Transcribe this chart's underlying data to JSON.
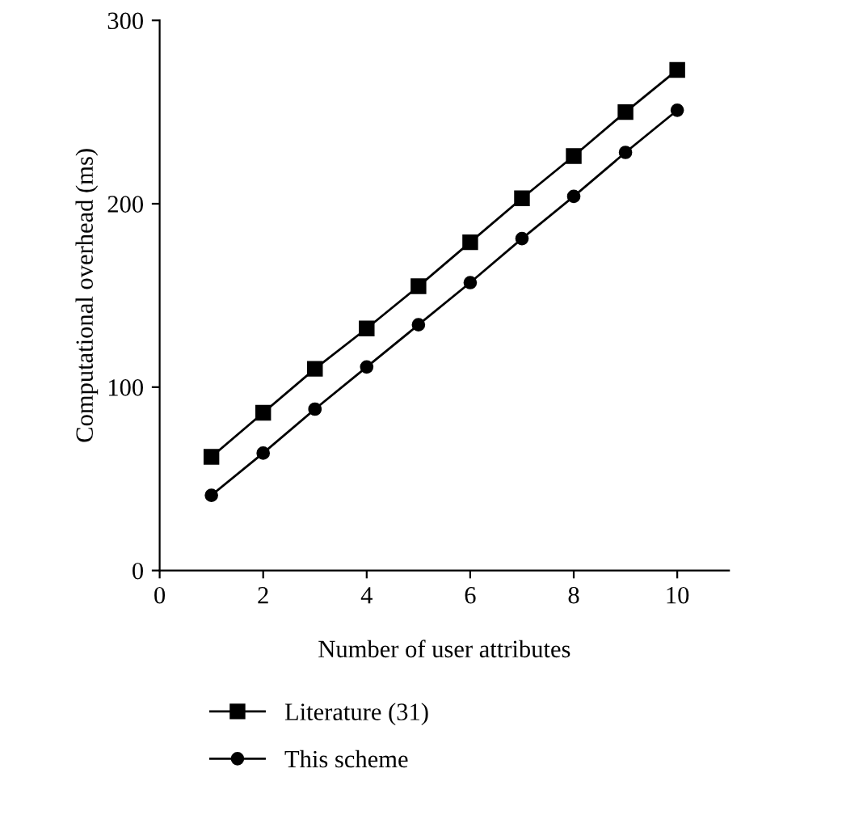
{
  "chart_data": {
    "type": "line",
    "xlabel": "Number of user attributes",
    "ylabel": "Computational overhead (ms)",
    "x": [
      1,
      2,
      3,
      4,
      5,
      6,
      7,
      8,
      9,
      10
    ],
    "series": [
      {
        "name": "Literature (31)",
        "color": "#000000",
        "marker": "square",
        "values": [
          62,
          86,
          110,
          132,
          155,
          179,
          203,
          226,
          250,
          273
        ]
      },
      {
        "name": "This scheme",
        "color": "#000000",
        "marker": "circle",
        "values": [
          41,
          64,
          88,
          111,
          134,
          157,
          181,
          204,
          228,
          251
        ]
      }
    ],
    "xlim": [
      0,
      11
    ],
    "xticks": [
      0,
      2,
      4,
      6,
      8,
      10
    ],
    "ylim": [
      0,
      300
    ],
    "yticks": [
      0,
      100,
      200,
      300
    ],
    "grid": false,
    "legend": "bottom",
    "line_style": "solid"
  }
}
